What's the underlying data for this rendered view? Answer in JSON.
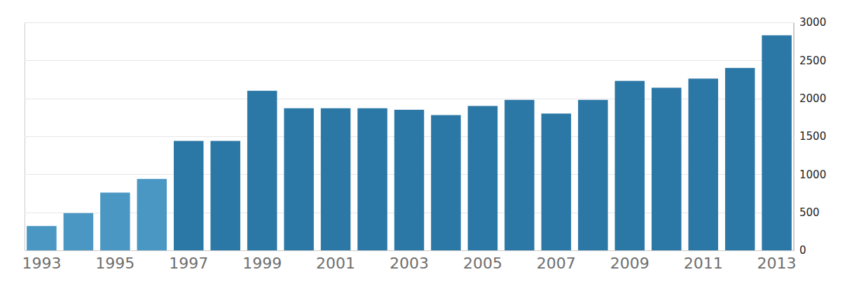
{
  "chart_data": {
    "type": "bar",
    "categories": [
      "1993",
      null,
      "1995",
      null,
      "1997",
      null,
      "1999",
      null,
      "2001",
      null,
      "2003",
      null,
      "2005",
      null,
      "2007",
      null,
      "2009",
      null,
      "2011",
      null,
      "2013"
    ],
    "values": [
      320,
      490,
      760,
      940,
      1440,
      1440,
      2100,
      1870,
      1870,
      1870,
      1850,
      1780,
      1900,
      1980,
      1800,
      1980,
      2230,
      2140,
      2260,
      2400,
      2830
    ],
    "colors": [
      "#4b97c4",
      "#4b97c4",
      "#4b97c4",
      "#4b97c4",
      "#2b77a6",
      "#2b77a6",
      "#2b77a6",
      "#2b77a6",
      "#2b77a6",
      "#2b77a6",
      "#2b77a6",
      "#2b77a6",
      "#2b77a6",
      "#2b77a6",
      "#2b77a6",
      "#2b77a6",
      "#2b77a6",
      "#2b77a6",
      "#2b77a6",
      "#2b77a6",
      "#2b77a6"
    ],
    "ylim": [
      0,
      3000
    ],
    "yticks": [
      0,
      500,
      1000,
      1500,
      2000,
      2500,
      3000
    ],
    "grid": true
  }
}
